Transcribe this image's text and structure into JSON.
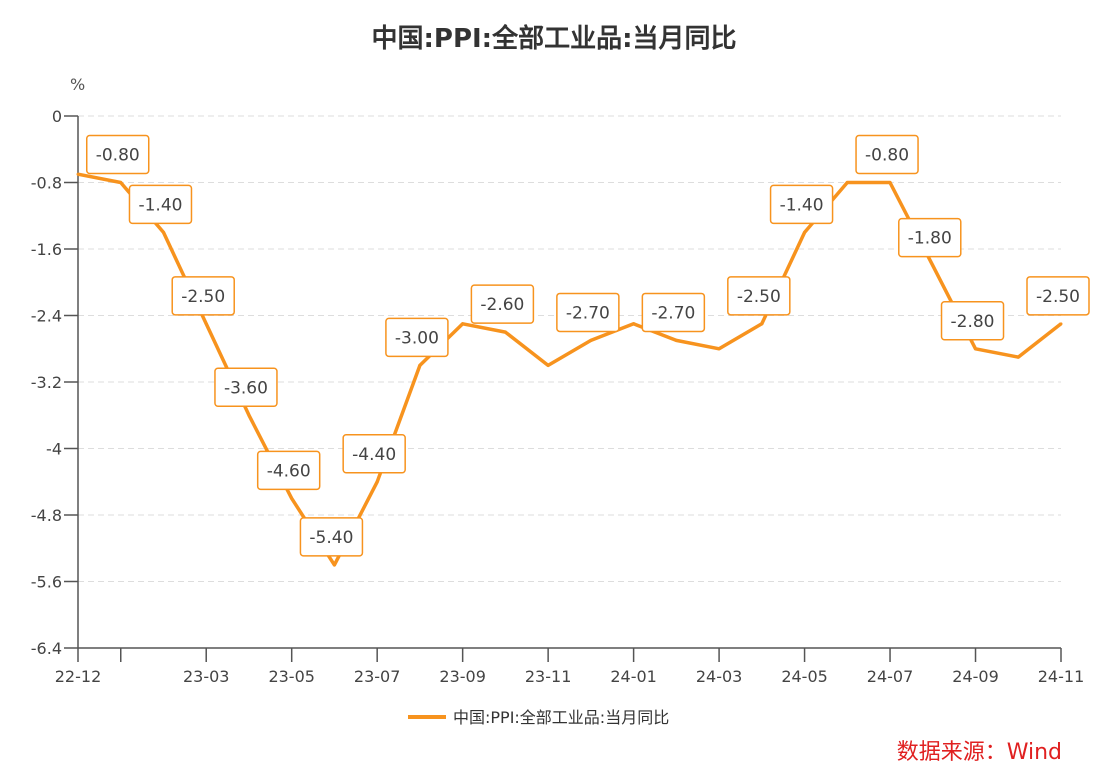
{
  "chart_data": {
    "type": "line",
    "title": "中国:PPI:全部工业品:当月同比",
    "ylabel": "%",
    "xlabel": "",
    "ylim": [
      -6.4,
      0
    ],
    "yticks": [
      0,
      -0.8,
      -1.6,
      -2.4,
      -3.2,
      -4,
      -4.8,
      -5.6,
      -6.4
    ],
    "grid": true,
    "legend_position": "bottom",
    "x": [
      "22-12",
      "23-01",
      "23-02",
      "23-03",
      "23-04",
      "23-05",
      "23-06",
      "23-07",
      "23-08",
      "23-09",
      "23-10",
      "23-11",
      "23-12",
      "24-01",
      "24-02",
      "24-03",
      "24-04",
      "24-05",
      "24-06",
      "24-07",
      "24-08",
      "24-09",
      "24-10",
      "24-11"
    ],
    "xtick_labels": [
      "22-12",
      "",
      "",
      "23-03",
      "",
      "23-05",
      "",
      "23-07",
      "",
      "23-09",
      "",
      "23-11",
      "",
      "24-01",
      "",
      "24-03",
      "",
      "24-05",
      "",
      "24-07",
      "",
      "24-09",
      "",
      "24-11"
    ],
    "series": [
      {
        "name": "中国:PPI:全部工业品:当月同比",
        "color": "#f7931e",
        "values": [
          -0.7,
          -0.8,
          -1.4,
          -2.5,
          -3.6,
          -4.6,
          -5.4,
          -4.4,
          -3.0,
          -2.5,
          -2.6,
          -3.0,
          -2.7,
          -2.5,
          -2.7,
          -2.8,
          -2.5,
          -1.4,
          -0.8,
          -0.8,
          -1.8,
          -2.8,
          -2.9,
          -2.5
        ],
        "data_labels": [
          null,
          "-0.80",
          "-1.40",
          "-2.50",
          "-3.60",
          "-4.60",
          "-5.40",
          "-4.40",
          "-3.00",
          null,
          "-2.60",
          null,
          "-2.70",
          null,
          "-2.70",
          null,
          "-2.50",
          "-1.40",
          null,
          "-0.80",
          "-1.80",
          "-2.80",
          null,
          "-2.50"
        ]
      }
    ]
  },
  "source": "数据来源：Wind"
}
